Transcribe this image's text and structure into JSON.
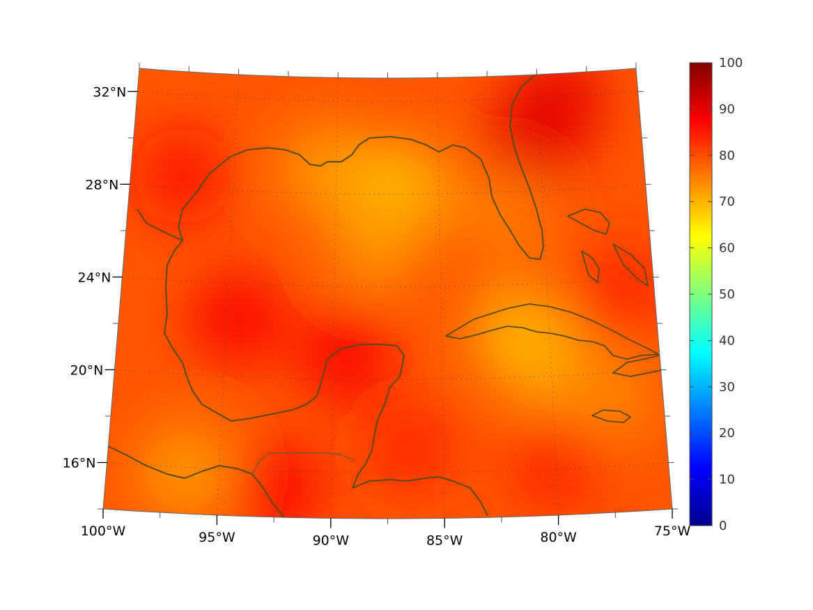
{
  "map": {
    "lon_range": [
      -100,
      -75
    ],
    "lat_range": [
      14,
      33
    ],
    "lon_ticks": [
      {
        "value": -100,
        "label": "100°W"
      },
      {
        "value": -95,
        "label": "95°W"
      },
      {
        "value": -90,
        "label": "90°W"
      },
      {
        "value": -85,
        "label": "85°W"
      },
      {
        "value": -80,
        "label": "80°W"
      },
      {
        "value": -75,
        "label": "75°W"
      }
    ],
    "lat_ticks": [
      {
        "value": 32,
        "label": "32°N"
      },
      {
        "value": 28,
        "label": "28°N"
      },
      {
        "value": 24,
        "label": "24°N"
      },
      {
        "value": 20,
        "label": "20°N"
      },
      {
        "value": 16,
        "label": "16°N"
      }
    ],
    "projection": "conic",
    "grid": true,
    "coastline_color": "#5a4a18",
    "colormap": "jet"
  },
  "colorbar": {
    "range": [
      0,
      100
    ],
    "ticks": [
      {
        "value": 0,
        "label": "0"
      },
      {
        "value": 10,
        "label": "10"
      },
      {
        "value": 20,
        "label": "20"
      },
      {
        "value": 30,
        "label": "30"
      },
      {
        "value": 40,
        "label": "40"
      },
      {
        "value": 50,
        "label": "50"
      },
      {
        "value": 60,
        "label": "60"
      },
      {
        "value": 70,
        "label": "70"
      },
      {
        "value": 80,
        "label": "80"
      },
      {
        "value": 90,
        "label": "90"
      },
      {
        "value": 100,
        "label": "100"
      }
    ],
    "placement": "right"
  },
  "field": {
    "background_value": 79,
    "hotspots": [
      {
        "lon": -97.5,
        "lat": 28.5,
        "value": 86
      },
      {
        "lon": -94.5,
        "lat": 22.5,
        "value": 88
      },
      {
        "lon": -90.5,
        "lat": 29.0,
        "value": 72
      },
      {
        "lon": -87.0,
        "lat": 28.2,
        "value": 68
      },
      {
        "lon": -88.0,
        "lat": 26.0,
        "value": 72
      },
      {
        "lon": -89.5,
        "lat": 21.0,
        "value": 88
      },
      {
        "lon": -80.5,
        "lat": 30.0,
        "value": 90
      },
      {
        "lon": -79.0,
        "lat": 31.8,
        "value": 90
      },
      {
        "lon": -82.0,
        "lat": 27.0,
        "value": 75
      },
      {
        "lon": -81.5,
        "lat": 22.0,
        "value": 70
      },
      {
        "lon": -80.5,
        "lat": 20.8,
        "value": 70
      },
      {
        "lon": -77.5,
        "lat": 19.0,
        "value": 74
      },
      {
        "lon": -86.5,
        "lat": 17.0,
        "value": 84
      },
      {
        "lon": -92.5,
        "lat": 15.2,
        "value": 88
      },
      {
        "lon": -96.5,
        "lat": 15.8,
        "value": 72
      },
      {
        "lon": -80.0,
        "lat": 16.0,
        "value": 84
      },
      {
        "lon": -76.5,
        "lat": 23.5,
        "value": 84
      }
    ]
  }
}
